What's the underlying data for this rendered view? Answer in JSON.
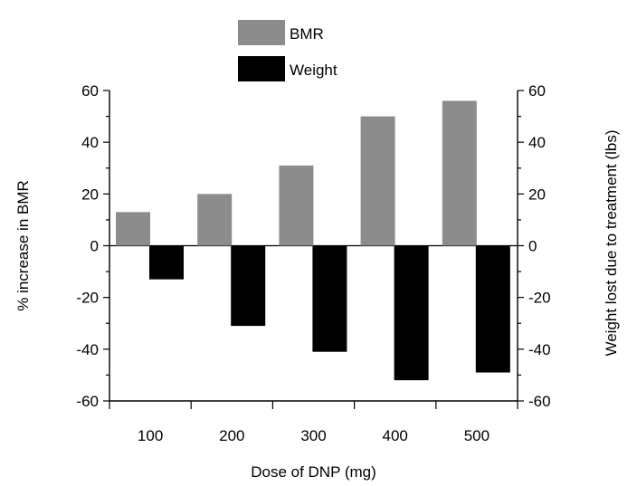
{
  "chart_data": {
    "type": "bar",
    "categories": [
      "100",
      "200",
      "300",
      "400",
      "500"
    ],
    "series": [
      {
        "name": "BMR",
        "axis": "left",
        "color": "#8c8c8c",
        "values": [
          13,
          20,
          31,
          50,
          56
        ]
      },
      {
        "name": "Weight",
        "axis": "right",
        "color": "#000000",
        "values": [
          -13,
          -31,
          -41,
          -52,
          -49
        ]
      }
    ],
    "title": "",
    "xlabel": "Dose of DNP (mg)",
    "ylabel": "% increase in BMR",
    "ylabel_right": "Weight lost due to treatment (lbs)",
    "ylim": [
      -60,
      60
    ],
    "ylim_right": [
      -60,
      60
    ],
    "yticks": [
      60,
      40,
      20,
      0,
      -20,
      -40,
      -60
    ],
    "legend_position": "top",
    "grid": false
  }
}
